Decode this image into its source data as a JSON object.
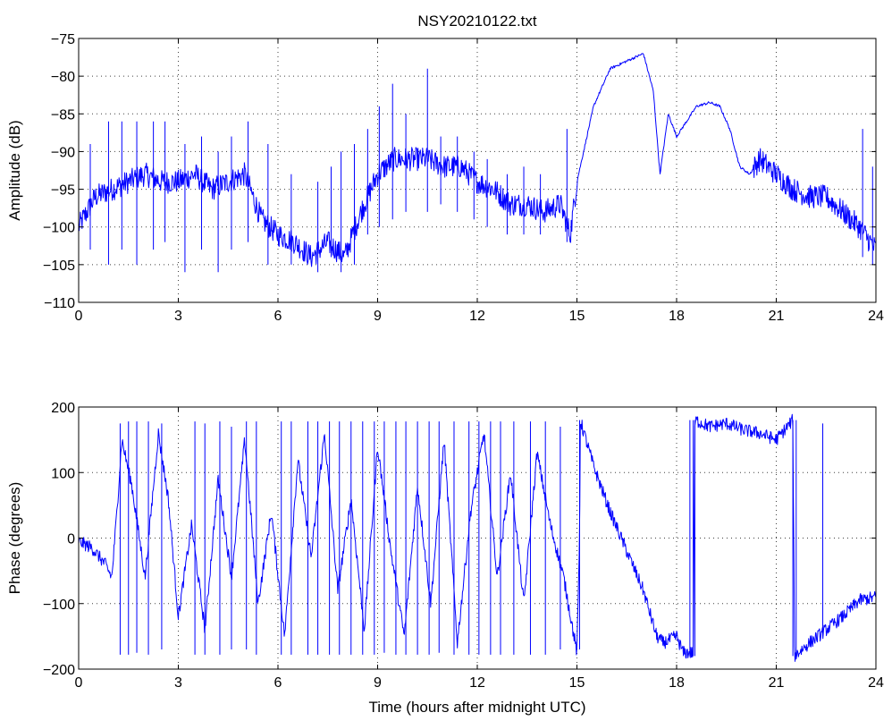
{
  "figure": {
    "title": "NSY20210122.txt"
  },
  "colors": {
    "trace": "#0000ff",
    "axes": "#000000",
    "background": "#ffffff"
  },
  "chart_data": [
    {
      "type": "line",
      "title": "NSY20210122.txt",
      "xlabel": "",
      "ylabel": "Amplitude (dB)",
      "xlim": [
        0,
        24
      ],
      "ylim": [
        -110,
        -75
      ],
      "xticks": [
        0,
        3,
        6,
        9,
        12,
        15,
        18,
        21,
        24
      ],
      "xtick_labels": [
        "0",
        "3",
        "6",
        "9",
        "12",
        "15",
        "18",
        "21",
        "24"
      ],
      "yticks": [
        -110,
        -105,
        -100,
        -95,
        -90,
        -85,
        -80,
        -75
      ],
      "ytick_labels": [
        "−110",
        "−105",
        "−100",
        "−95",
        "−90",
        "−85",
        "−80",
        "−75"
      ],
      "grid": true,
      "series": [
        {
          "color": "#0000ff",
          "x": [
            0,
            0.5,
            1,
            1.5,
            2,
            2.5,
            3,
            3.5,
            4,
            4.5,
            5,
            5.5,
            6,
            6.5,
            7,
            7.5,
            8,
            8.5,
            9,
            9.5,
            10,
            10.5,
            11,
            11.5,
            12,
            12.5,
            13,
            13.5,
            14,
            14.5,
            14.8,
            15,
            15.5,
            16,
            16.5,
            17,
            17.3,
            17.5,
            17.75,
            18,
            18.3,
            18.6,
            19,
            19.3,
            19.6,
            19.9,
            20.2,
            20.5,
            21,
            21.5,
            22,
            22.5,
            23,
            23.5,
            24
          ],
          "y": [
            -100,
            -96,
            -95,
            -94,
            -93,
            -94,
            -94,
            -93,
            -95,
            -94,
            -93,
            -99,
            -101,
            -102,
            -104,
            -102,
            -104,
            -98,
            -93,
            -91,
            -91,
            -91,
            -92,
            -92,
            -94,
            -95,
            -97,
            -97,
            -98,
            -97,
            -101,
            -94,
            -84,
            -79,
            -78,
            -77,
            -82,
            -93,
            -85,
            -88,
            -86,
            -84,
            -83.5,
            -84,
            -87,
            -92,
            -93,
            -91,
            -93,
            -95,
            -96,
            -96,
            -98,
            -100,
            -103
          ]
        },
        {
          "kind": "spikes",
          "color": "#0000ff",
          "x": [
            0.35,
            0.9,
            1.3,
            1.75,
            2.25,
            2.6,
            3.2,
            3.7,
            4.2,
            4.6,
            5.1,
            5.7,
            6.4,
            7.2,
            7.6,
            7.9,
            8.3,
            8.7,
            9.05,
            9.45,
            9.85,
            10.5,
            10.9,
            11.4,
            11.9,
            12.3,
            12.9,
            13.4,
            13.9,
            14.7,
            23.6,
            23.9
          ],
          "y_high": [
            -89,
            -86,
            -86,
            -86,
            -86,
            -86,
            -89,
            -88,
            -90,
            -88,
            -86,
            -89,
            -93,
            -94,
            -92,
            -90,
            -89,
            -87,
            -84,
            -81,
            -85,
            -79,
            -88,
            -88,
            -90,
            -91,
            -93,
            -92,
            -93,
            -87,
            -87,
            -92
          ],
          "y_low": [
            -103,
            -105,
            -103,
            -105,
            -103,
            -102,
            -106,
            -103,
            -106,
            -103,
            -102,
            -105,
            -105,
            -106,
            -104,
            -106,
            -105,
            -101,
            -100,
            -99,
            -98,
            -98,
            -97,
            -98,
            -99,
            -100,
            -101,
            -101,
            -101,
            -102,
            -104,
            -105
          ]
        }
      ]
    },
    {
      "type": "line",
      "title": "",
      "xlabel": "Time (hours after midnight UTC)",
      "ylabel": "Phase (degrees)",
      "xlim": [
        0,
        24
      ],
      "ylim": [
        -200,
        200
      ],
      "xticks": [
        0,
        3,
        6,
        9,
        12,
        15,
        18,
        21,
        24
      ],
      "xtick_labels": [
        "0",
        "3",
        "6",
        "9",
        "12",
        "15",
        "18",
        "21",
        "24"
      ],
      "yticks": [
        -200,
        -100,
        0,
        100,
        200
      ],
      "ytick_labels": [
        "−200",
        "−100",
        "0",
        "100",
        "200"
      ],
      "grid": true,
      "series": [
        {
          "color": "#0000ff",
          "x": [
            0,
            0.4,
            0.8,
            1,
            1.15,
            1.3,
            1.6,
            2,
            2.4,
            2.7,
            3,
            3.4,
            3.8,
            4.2,
            4.6,
            5,
            5.4,
            5.8,
            6.2,
            6.6,
            7,
            7.4,
            7.8,
            8.2,
            8.6,
            9,
            9.4,
            9.8,
            10.2,
            10.6,
            11,
            11.4,
            11.8,
            12.2,
            12.6,
            13,
            13.4,
            13.8,
            14.2,
            14.6,
            15,
            15.08,
            15.1,
            15.5,
            16,
            16.5,
            17,
            17.4,
            17.6,
            18,
            18.2,
            18.5,
            18.55,
            19,
            19.5,
            20,
            20.5,
            21,
            21.5,
            21.55,
            22,
            22.5,
            23,
            23.5,
            24
          ],
          "y": [
            -5,
            -15,
            -40,
            -60,
            40,
            150,
            80,
            -60,
            160,
            60,
            -120,
            20,
            -140,
            90,
            -60,
            150,
            -100,
            40,
            -150,
            120,
            -30,
            160,
            -80,
            60,
            -140,
            140,
            -20,
            -150,
            80,
            -100,
            150,
            -160,
            40,
            160,
            -60,
            100,
            -100,
            130,
            20,
            -60,
            -175,
            0,
            180,
            110,
            40,
            -20,
            -80,
            -150,
            -160,
            -150,
            -175,
            -175,
            180,
            170,
            175,
            165,
            160,
            150,
            180,
            -180,
            -160,
            -140,
            -120,
            -95,
            -90
          ]
        },
        {
          "kind": "spikes",
          "color": "#0000ff",
          "x": [
            1.25,
            1.5,
            1.75,
            2.1,
            2.5,
            3.5,
            3.8,
            4.25,
            4.6,
            5.05,
            5.35,
            6.1,
            6.4,
            6.9,
            7.2,
            7.55,
            7.85,
            8.2,
            8.55,
            8.9,
            9.2,
            9.55,
            9.85,
            10.2,
            10.55,
            10.85,
            11.3,
            11.75,
            12.05,
            12.4,
            12.7,
            13.1,
            13.6,
            14.05,
            14.5,
            15.08,
            18.4,
            18.5,
            18.55,
            21.5,
            21.6,
            22.4
          ],
          "y_high": [
            175,
            178,
            178,
            178,
            175,
            178,
            175,
            178,
            170,
            178,
            178,
            178,
            178,
            178,
            178,
            178,
            178,
            178,
            178,
            178,
            178,
            178,
            178,
            178,
            178,
            178,
            178,
            178,
            178,
            178,
            178,
            178,
            178,
            178,
            170,
            180,
            180,
            180,
            180,
            180,
            180,
            175
          ],
          "y_low": [
            -178,
            -178,
            -175,
            -178,
            -170,
            -178,
            -178,
            -178,
            -170,
            -170,
            -178,
            -178,
            -178,
            -178,
            -178,
            -178,
            -178,
            -178,
            -178,
            -178,
            -175,
            -178,
            -178,
            -178,
            -178,
            -175,
            -178,
            -178,
            -178,
            -178,
            -178,
            -178,
            -178,
            -178,
            -170,
            -170,
            -180,
            -180,
            -180,
            -180,
            -180,
            -150
          ]
        }
      ]
    }
  ]
}
